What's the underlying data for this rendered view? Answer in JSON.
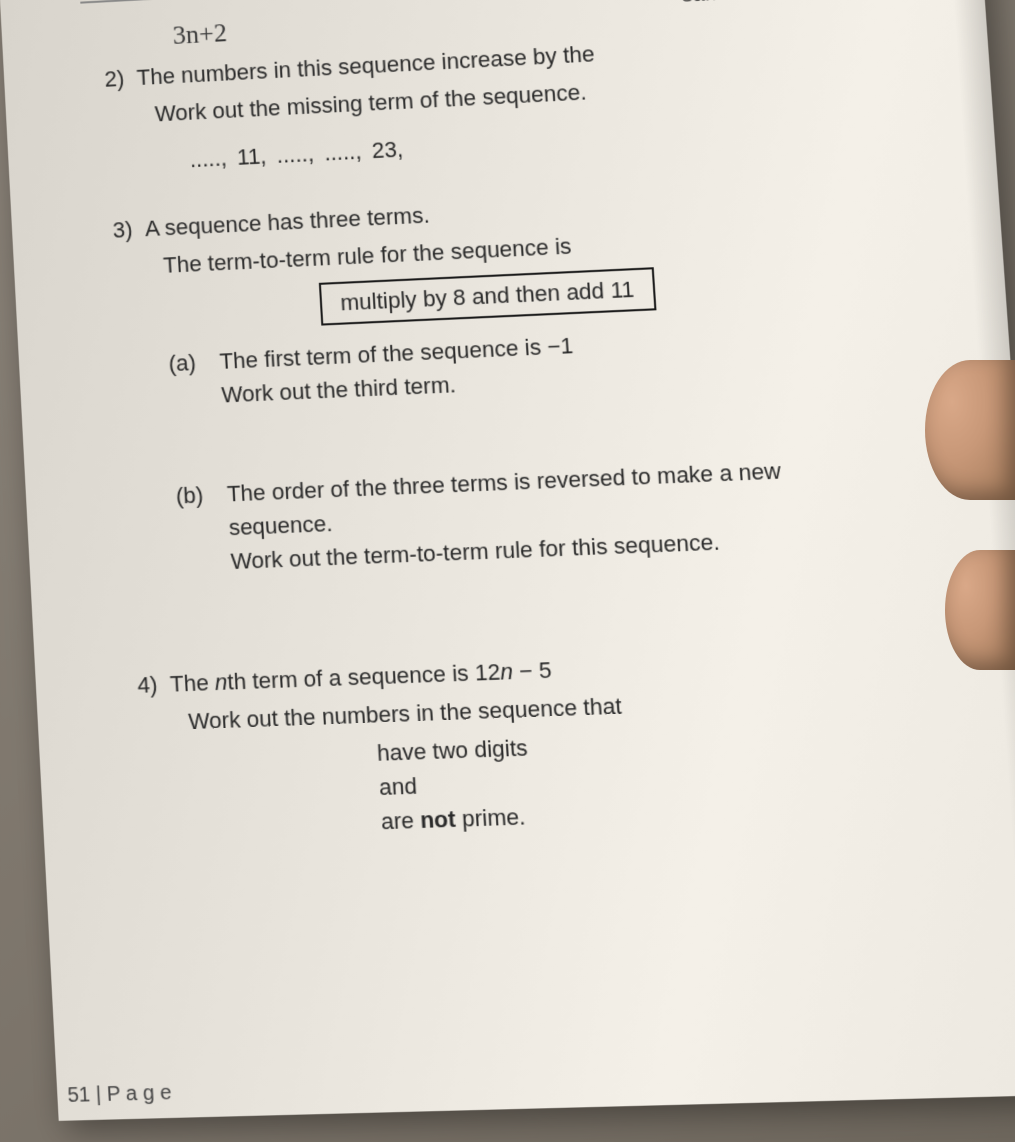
{
  "handwritten_note": "3n+2",
  "top_partial_text": "same amount each time.",
  "q2": {
    "number": "2)",
    "line1": "The numbers in this sequence increase by the",
    "line2": "Work out the missing term of the sequence.",
    "sequence": "....., 11, ....., ....., 23,"
  },
  "q3": {
    "number": "3)",
    "line1": "A sequence has three terms.",
    "line2": "The term-to-term rule for the sequence is",
    "rule_box": "multiply by 8 and then add 11",
    "part_a": {
      "label": "(a)",
      "line1": "The first term of the sequence is −1",
      "line2": "Work out the third term."
    },
    "part_b": {
      "label": "(b)",
      "line1": "The order of the three terms is reversed to make a new",
      "line2": "sequence.",
      "line3": "Work out the term-to-term rule for this sequence."
    }
  },
  "q4": {
    "number": "4)",
    "line1_pre": "The ",
    "line1_italic": "n",
    "line1_post": "th term of a sequence is   12",
    "line1_italic2": "n",
    "line1_end": " − 5",
    "line2": "Work out the numbers in the sequence that",
    "center1": "have two digits",
    "center2": "and",
    "center3_pre": "are ",
    "center3_bold": "not",
    "center3_post": " prime."
  },
  "footer": "51 | P a g e"
}
